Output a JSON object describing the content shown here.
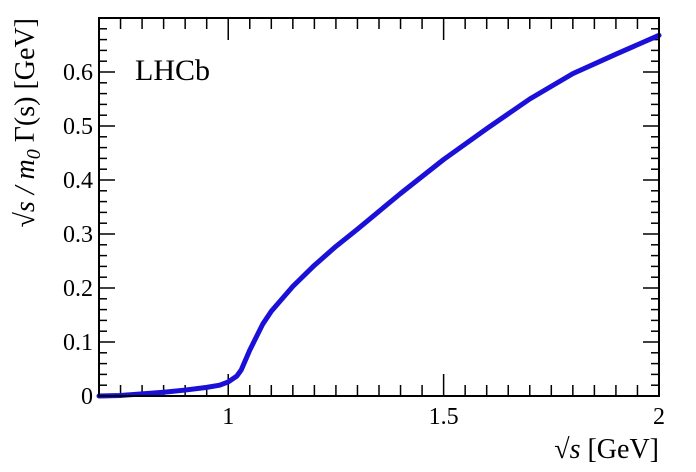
{
  "chart_data": {
    "type": "line",
    "annotation": "LHCb",
    "xlabel": {
      "prefix": "√s",
      "suffix": " [GeV]"
    },
    "ylabel": {
      "prefix": "√s / ",
      "m0": "m",
      "m0_sub": "0",
      "suffix": " Γ(s) [GeV]"
    },
    "xlim": [
      0.7,
      2.0
    ],
    "ylim": [
      0,
      0.7
    ],
    "x_tick_labels": [
      {
        "value": 1.0,
        "label": "1"
      },
      {
        "value": 1.5,
        "label": "1.5"
      },
      {
        "value": 2.0,
        "label": "2"
      }
    ],
    "y_tick_labels": [
      {
        "value": 0,
        "label": "0"
      },
      {
        "value": 0.1,
        "label": "0.1"
      },
      {
        "value": 0.2,
        "label": "0.2"
      },
      {
        "value": 0.3,
        "label": "0.3"
      },
      {
        "value": 0.4,
        "label": "0.4"
      },
      {
        "value": 0.5,
        "label": "0.5"
      },
      {
        "value": 0.6,
        "label": "0.6"
      }
    ],
    "grid": false,
    "series": [
      {
        "color": "#1a10d8",
        "x": [
          0.7,
          0.75,
          0.8,
          0.85,
          0.9,
          0.95,
          0.98,
          1.0,
          1.02,
          1.03,
          1.05,
          1.08,
          1.1,
          1.15,
          1.2,
          1.25,
          1.3,
          1.4,
          1.5,
          1.6,
          1.7,
          1.8,
          1.9,
          2.0
        ],
        "y": [
          0.0,
          0.001,
          0.004,
          0.007,
          0.011,
          0.016,
          0.02,
          0.026,
          0.037,
          0.048,
          0.085,
          0.133,
          0.157,
          0.203,
          0.242,
          0.277,
          0.309,
          0.375,
          0.438,
          0.495,
          0.55,
          0.597,
          0.633,
          0.668
        ]
      }
    ]
  }
}
